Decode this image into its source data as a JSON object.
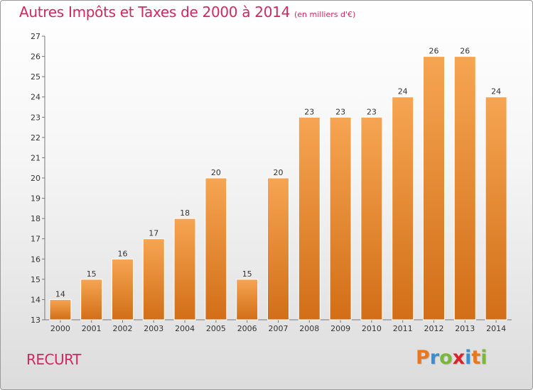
{
  "header": {
    "title": "Autres Impôts et Taxes de 2000 à 2014",
    "subtitle": "(en milliers d'€)"
  },
  "footer": {
    "commune": "RECURT",
    "logo_letters": [
      "P",
      "r",
      "o",
      "x",
      "i",
      "t",
      "i"
    ],
    "logo_colors": [
      "#e87722",
      "#3a8fd0",
      "#7ab83b",
      "#d6262c",
      "#3a8fd0",
      "#e87722",
      "#7ab83b"
    ]
  },
  "colors": {
    "bar_light": "#f6a552",
    "bar_dark": "#d26e17",
    "text": "#d1285f"
  },
  "chart_data": {
    "type": "bar",
    "categories": [
      "2000",
      "2001",
      "2002",
      "2003",
      "2004",
      "2005",
      "2006",
      "2007",
      "2008",
      "2009",
      "2010",
      "2011",
      "2012",
      "2013",
      "2014"
    ],
    "values": [
      14,
      15,
      16,
      17,
      18,
      20,
      15,
      20,
      23,
      23,
      23,
      24,
      26,
      26,
      24
    ],
    "ylim": [
      13,
      27
    ],
    "yticks": [
      13,
      14,
      15,
      16,
      17,
      18,
      19,
      20,
      21,
      22,
      23,
      24,
      25,
      26,
      27
    ],
    "grid": false,
    "legend": "none"
  }
}
